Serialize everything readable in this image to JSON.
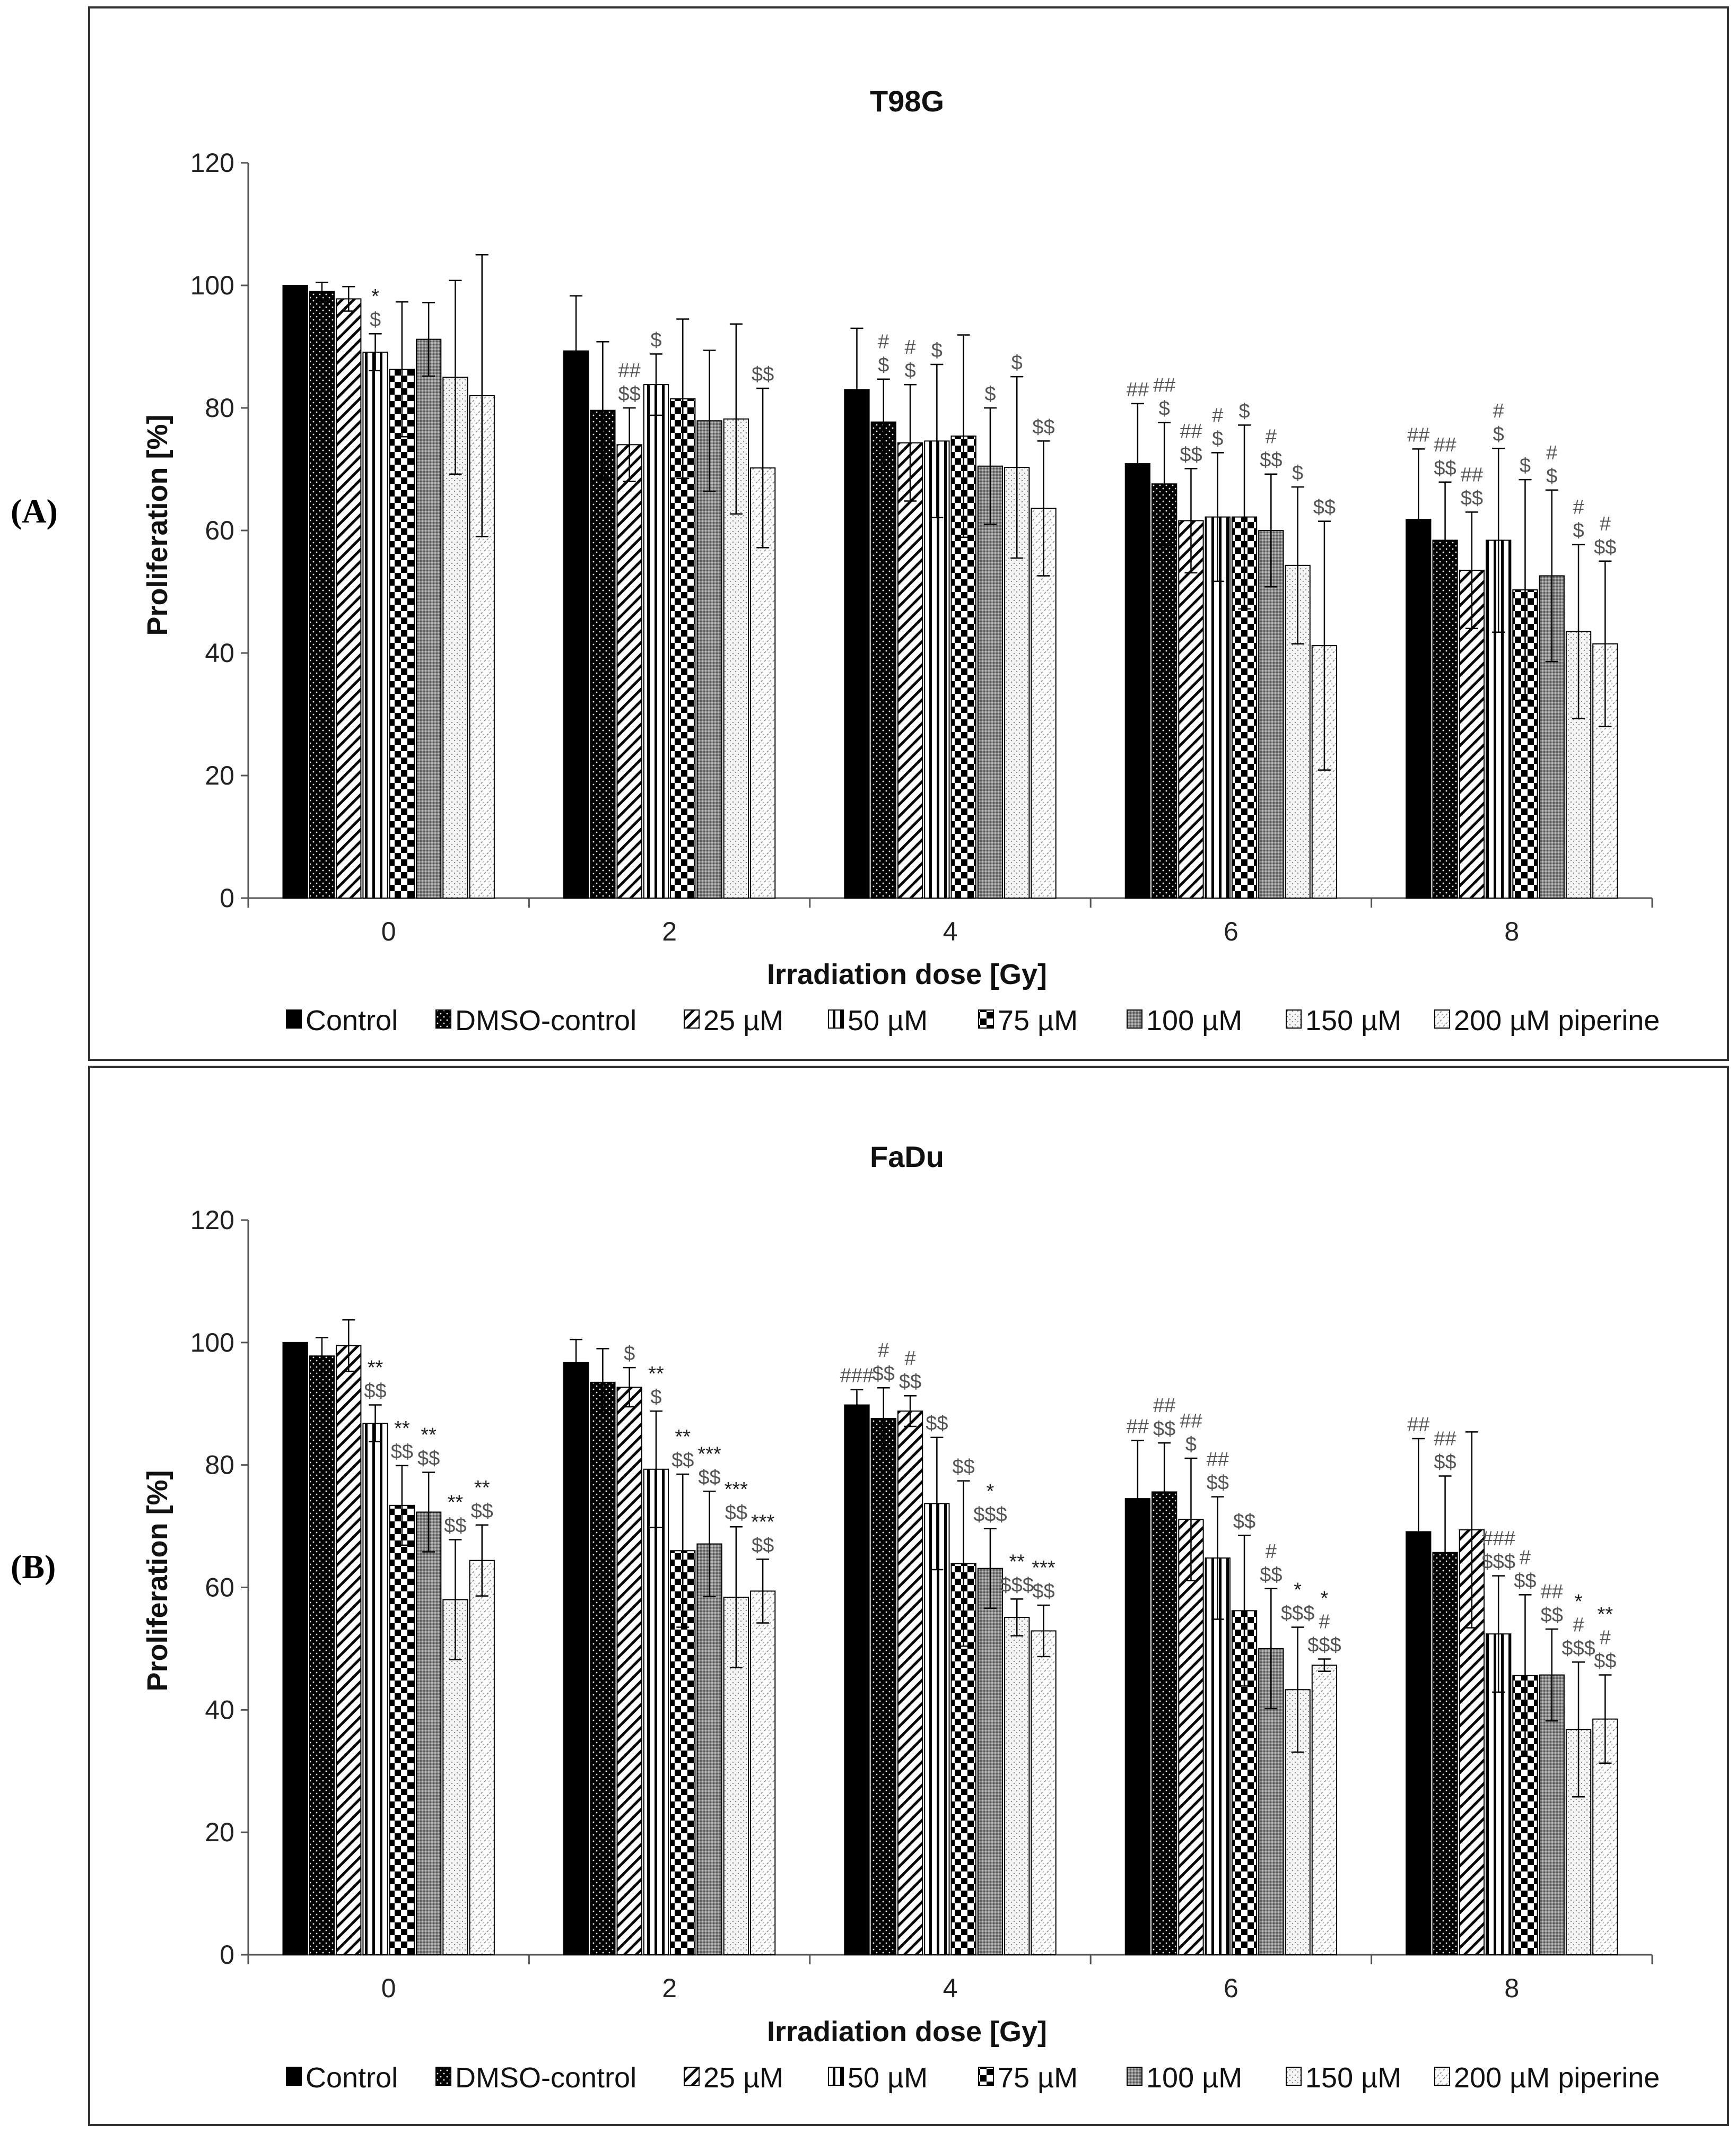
{
  "legend": [
    "Control",
    "DMSO-control",
    "25 µM",
    "50 µM",
    "75 µM",
    "100 µM",
    "150 µM",
    "200 µM piperine"
  ],
  "chart_data": [
    {
      "panel": "(A)",
      "type": "bar",
      "title": "T98G",
      "xlabel": "Irradiation dose [Gy]",
      "ylabel": "Proliferation [%]",
      "ylim": [
        0,
        120
      ],
      "yticks": [
        0,
        20,
        40,
        60,
        80,
        100,
        120
      ],
      "categories": [
        "0",
        "2",
        "4",
        "6",
        "8"
      ],
      "series": [
        {
          "name": "Control",
          "values": [
            100,
            89.3,
            83.0,
            70.9,
            61.8
          ],
          "err": [
            0,
            9.0,
            10.0,
            9.8,
            11.5
          ]
        },
        {
          "name": "DMSO-control",
          "values": [
            99.0,
            79.6,
            77.7,
            67.6,
            58.4
          ],
          "err": [
            1.5,
            11.2,
            7.0,
            10.0,
            9.5
          ]
        },
        {
          "name": "25 µM",
          "values": [
            97.8,
            74.0,
            74.3,
            61.6,
            53.5
          ],
          "err": [
            2.0,
            6.0,
            9.5,
            8.5,
            9.5
          ]
        },
        {
          "name": "50 µM",
          "values": [
            89.1,
            83.8,
            74.6,
            62.2,
            58.4
          ],
          "err": [
            3.0,
            5.0,
            12.5,
            10.5,
            15.0
          ]
        },
        {
          "name": "75 µM",
          "values": [
            86.3,
            81.5,
            75.4,
            62.2,
            50.3
          ],
          "err": [
            11.0,
            13.0,
            16.5,
            15.0,
            18.0
          ]
        },
        {
          "name": "100 µM",
          "values": [
            91.2,
            77.9,
            70.5,
            60.0,
            52.6
          ],
          "err": [
            6.0,
            11.5,
            9.5,
            9.2,
            14.0
          ]
        },
        {
          "name": "150 µM",
          "values": [
            85.0,
            78.2,
            70.3,
            54.3,
            43.5
          ],
          "err": [
            15.8,
            15.5,
            14.8,
            12.8,
            14.2
          ]
        },
        {
          "name": "200 µM piperine",
          "values": [
            82.0,
            70.2,
            63.6,
            41.2,
            41.5
          ],
          "err": [
            23.0,
            13.0,
            11.0,
            20.3,
            13.5
          ]
        }
      ],
      "annotations": [
        {
          "cat": 0,
          "bar": 3,
          "lines": [
            "*",
            "$"
          ]
        },
        {
          "cat": 1,
          "bar": 2,
          "lines": [
            "##",
            "$$"
          ]
        },
        {
          "cat": 1,
          "bar": 3,
          "lines": [
            "$"
          ]
        },
        {
          "cat": 1,
          "bar": 7,
          "lines": [
            "$$"
          ]
        },
        {
          "cat": 2,
          "bar": 1,
          "lines": [
            "#",
            "$"
          ]
        },
        {
          "cat": 2,
          "bar": 2,
          "lines": [
            "#",
            "$"
          ]
        },
        {
          "cat": 2,
          "bar": 3,
          "lines": [
            "$"
          ]
        },
        {
          "cat": 2,
          "bar": 5,
          "lines": [
            "$"
          ]
        },
        {
          "cat": 2,
          "bar": 6,
          "lines": [
            "$"
          ]
        },
        {
          "cat": 2,
          "bar": 7,
          "lines": [
            "$$"
          ]
        },
        {
          "cat": 3,
          "bar": 0,
          "lines": [
            "##"
          ]
        },
        {
          "cat": 3,
          "bar": 1,
          "lines": [
            "##",
            "$"
          ]
        },
        {
          "cat": 3,
          "bar": 2,
          "lines": [
            "##",
            "$$"
          ]
        },
        {
          "cat": 3,
          "bar": 3,
          "lines": [
            "#",
            "$"
          ]
        },
        {
          "cat": 3,
          "bar": 4,
          "lines": [
            "$"
          ]
        },
        {
          "cat": 3,
          "bar": 5,
          "lines": [
            "#",
            "$$"
          ]
        },
        {
          "cat": 3,
          "bar": 6,
          "lines": [
            "$"
          ]
        },
        {
          "cat": 3,
          "bar": 7,
          "lines": [
            "$$"
          ]
        },
        {
          "cat": 4,
          "bar": 0,
          "lines": [
            "##"
          ]
        },
        {
          "cat": 4,
          "bar": 1,
          "lines": [
            "##",
            "$$"
          ]
        },
        {
          "cat": 4,
          "bar": 2,
          "lines": [
            "##",
            "$$"
          ]
        },
        {
          "cat": 4,
          "bar": 3,
          "lines": [
            "#",
            "$"
          ]
        },
        {
          "cat": 4,
          "bar": 4,
          "lines": [
            "$"
          ]
        },
        {
          "cat": 4,
          "bar": 5,
          "lines": [
            "#",
            "$"
          ]
        },
        {
          "cat": 4,
          "bar": 6,
          "lines": [
            "#",
            "$"
          ]
        },
        {
          "cat": 4,
          "bar": 7,
          "lines": [
            "#",
            "$$"
          ]
        }
      ]
    },
    {
      "panel": "(B)",
      "type": "bar",
      "title": "FaDu",
      "xlabel": "Irradiation dose [Gy]",
      "ylabel": "Proliferation [%]",
      "ylim": [
        0,
        120
      ],
      "yticks": [
        0,
        20,
        40,
        60,
        80,
        100,
        120
      ],
      "categories": [
        "0",
        "2",
        "4",
        "6",
        "8"
      ],
      "series": [
        {
          "name": "Control",
          "values": [
            100,
            96.7,
            89.8,
            74.5,
            69.1
          ],
          "err": [
            0,
            3.8,
            2.5,
            9.5,
            15.2
          ]
        },
        {
          "name": "DMSO-control",
          "values": [
            97.8,
            93.5,
            87.6,
            75.6,
            65.7
          ],
          "err": [
            3.0,
            5.5,
            5.0,
            8.0,
            12.5
          ]
        },
        {
          "name": "25 µM",
          "values": [
            99.5,
            92.7,
            88.8,
            71.1,
            69.4
          ],
          "err": [
            4.2,
            3.2,
            2.5,
            10.0,
            16.0
          ]
        },
        {
          "name": "50 µM",
          "values": [
            86.8,
            79.3,
            73.7,
            64.8,
            52.4
          ],
          "err": [
            3.0,
            9.5,
            10.8,
            10.0,
            9.5
          ]
        },
        {
          "name": "75 µM",
          "values": [
            73.4,
            66.0,
            63.9,
            56.2,
            45.6
          ],
          "err": [
            6.5,
            12.5,
            13.5,
            12.3,
            13.2
          ]
        },
        {
          "name": "100 µM",
          "values": [
            72.3,
            67.1,
            63.1,
            50.0,
            45.7
          ],
          "err": [
            6.5,
            8.6,
            6.5,
            9.8,
            7.5
          ]
        },
        {
          "name": "150 µM",
          "values": [
            58.0,
            58.4,
            55.1,
            43.3,
            36.8
          ],
          "err": [
            9.8,
            11.5,
            3.0,
            10.2,
            11.0
          ]
        },
        {
          "name": "200 µM piperine",
          "values": [
            64.4,
            59.4,
            52.9,
            47.3,
            38.5
          ],
          "err": [
            5.8,
            5.2,
            4.2,
            1.0,
            7.2
          ]
        }
      ],
      "annotations": [
        {
          "cat": 0,
          "bar": 3,
          "lines": [
            "**",
            "$$"
          ]
        },
        {
          "cat": 0,
          "bar": 4,
          "lines": [
            "**",
            "$$"
          ]
        },
        {
          "cat": 0,
          "bar": 5,
          "lines": [
            "**",
            "$$"
          ]
        },
        {
          "cat": 0,
          "bar": 6,
          "lines": [
            "**",
            "$$"
          ]
        },
        {
          "cat": 0,
          "bar": 7,
          "lines": [
            "**",
            "$$"
          ]
        },
        {
          "cat": 1,
          "bar": 2,
          "lines": [
            "$"
          ]
        },
        {
          "cat": 1,
          "bar": 3,
          "lines": [
            "**",
            "$"
          ]
        },
        {
          "cat": 1,
          "bar": 4,
          "lines": [
            "**",
            "$$"
          ]
        },
        {
          "cat": 1,
          "bar": 5,
          "lines": [
            "***",
            "$$"
          ]
        },
        {
          "cat": 1,
          "bar": 6,
          "lines": [
            "***",
            "$$"
          ]
        },
        {
          "cat": 1,
          "bar": 7,
          "lines": [
            "***",
            "$$"
          ]
        },
        {
          "cat": 2,
          "bar": 0,
          "lines": [
            "###"
          ]
        },
        {
          "cat": 2,
          "bar": 1,
          "lines": [
            "#",
            "$$"
          ]
        },
        {
          "cat": 2,
          "bar": 2,
          "lines": [
            "#",
            "$$"
          ]
        },
        {
          "cat": 2,
          "bar": 3,
          "lines": [
            "$$"
          ]
        },
        {
          "cat": 2,
          "bar": 4,
          "lines": [
            "$$"
          ]
        },
        {
          "cat": 2,
          "bar": 5,
          "lines": [
            "*",
            "$$$"
          ]
        },
        {
          "cat": 2,
          "bar": 6,
          "lines": [
            "**",
            "$$$"
          ]
        },
        {
          "cat": 2,
          "bar": 7,
          "lines": [
            "***",
            "$$"
          ]
        },
        {
          "cat": 3,
          "bar": 0,
          "lines": [
            "##"
          ]
        },
        {
          "cat": 3,
          "bar": 1,
          "lines": [
            "##",
            "$$"
          ]
        },
        {
          "cat": 3,
          "bar": 2,
          "lines": [
            "##",
            "$"
          ]
        },
        {
          "cat": 3,
          "bar": 3,
          "lines": [
            "##",
            "$$"
          ]
        },
        {
          "cat": 3,
          "bar": 4,
          "lines": [
            "$$"
          ]
        },
        {
          "cat": 3,
          "bar": 5,
          "lines": [
            "#",
            "$$"
          ]
        },
        {
          "cat": 3,
          "bar": 6,
          "lines": [
            "*",
            "$$$"
          ]
        },
        {
          "cat": 3,
          "bar": 7,
          "lines": [
            "*",
            "#",
            "$$$"
          ]
        },
        {
          "cat": 4,
          "bar": 0,
          "lines": [
            "##"
          ]
        },
        {
          "cat": 4,
          "bar": 1,
          "lines": [
            "##",
            "$$"
          ]
        },
        {
          "cat": 4,
          "bar": 3,
          "lines": [
            "###",
            "$$$"
          ]
        },
        {
          "cat": 4,
          "bar": 4,
          "lines": [
            "#",
            "$$"
          ]
        },
        {
          "cat": 4,
          "bar": 5,
          "lines": [
            "##",
            "$$"
          ]
        },
        {
          "cat": 4,
          "bar": 6,
          "lines": [
            "*",
            "#",
            "$$$"
          ]
        },
        {
          "cat": 4,
          "bar": 7,
          "lines": [
            "**",
            "#",
            "$$"
          ]
        }
      ]
    }
  ]
}
